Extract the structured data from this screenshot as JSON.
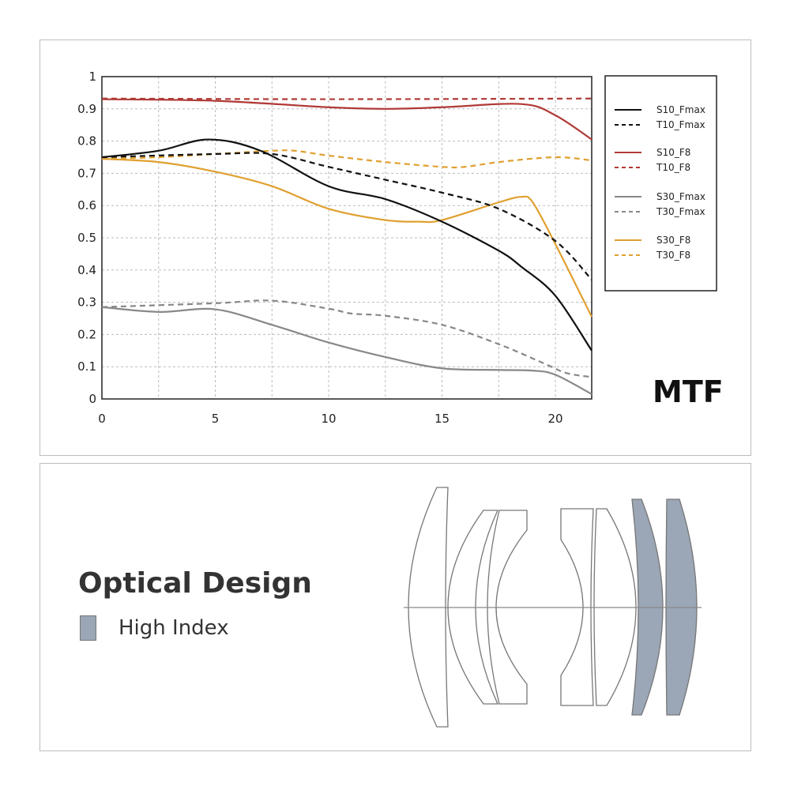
{
  "chart_data": {
    "type": "line",
    "title": "MTF",
    "xlabel": "",
    "ylabel": "",
    "xlim": [
      0,
      21.6
    ],
    "ylim": [
      0,
      1
    ],
    "x_ticks": [
      "0",
      "5",
      "10",
      "15",
      "20"
    ],
    "y_ticks": [
      "0",
      "0.1",
      "0.2",
      "0.3",
      "0.4",
      "0.5",
      "0.6",
      "0.7",
      "0.8",
      "0.9",
      "1"
    ],
    "grid": true,
    "legend_position": "right",
    "series": [
      {
        "name": "S10_Fmax",
        "color": "#111111",
        "dash": false,
        "points": [
          [
            0,
            0.75
          ],
          [
            2.5,
            0.77
          ],
          [
            4.7,
            0.805
          ],
          [
            7,
            0.77
          ],
          [
            10,
            0.66
          ],
          [
            12.5,
            0.62
          ],
          [
            15,
            0.55
          ],
          [
            17.5,
            0.46
          ],
          [
            18.5,
            0.41
          ],
          [
            20,
            0.32
          ],
          [
            21.6,
            0.15
          ]
        ]
      },
      {
        "name": "T10_Fmax",
        "color": "#111111",
        "dash": true,
        "points": [
          [
            0,
            0.75
          ],
          [
            5,
            0.76
          ],
          [
            7.5,
            0.76
          ],
          [
            10,
            0.72
          ],
          [
            12.5,
            0.68
          ],
          [
            15,
            0.64
          ],
          [
            17.5,
            0.59
          ],
          [
            20,
            0.49
          ],
          [
            21.6,
            0.37
          ]
        ]
      },
      {
        "name": "S10_F8",
        "color": "#b03a37",
        "dash": false,
        "points": [
          [
            0,
            0.93
          ],
          [
            5,
            0.925
          ],
          [
            10,
            0.905
          ],
          [
            12.5,
            0.9
          ],
          [
            15,
            0.905
          ],
          [
            18.5,
            0.915
          ],
          [
            20,
            0.88
          ],
          [
            21.6,
            0.805
          ]
        ]
      },
      {
        "name": "T10_F8",
        "color": "#b03a37",
        "dash": true,
        "points": [
          [
            0,
            0.932
          ],
          [
            10,
            0.93
          ],
          [
            21.6,
            0.932
          ]
        ]
      },
      {
        "name": "S30_Fmax",
        "color": "#888888",
        "dash": false,
        "points": [
          [
            0,
            0.285
          ],
          [
            2.5,
            0.27
          ],
          [
            5,
            0.278
          ],
          [
            7.5,
            0.23
          ],
          [
            10,
            0.175
          ],
          [
            12.5,
            0.13
          ],
          [
            15,
            0.095
          ],
          [
            17.5,
            0.09
          ],
          [
            19,
            0.088
          ],
          [
            20,
            0.075
          ],
          [
            21.6,
            0.015
          ]
        ]
      },
      {
        "name": "T30_Fmax",
        "color": "#888888",
        "dash": true,
        "points": [
          [
            0,
            0.285
          ],
          [
            5,
            0.297
          ],
          [
            7.5,
            0.305
          ],
          [
            10,
            0.28
          ],
          [
            11,
            0.265
          ],
          [
            12.5,
            0.258
          ],
          [
            15,
            0.23
          ],
          [
            17.5,
            0.17
          ],
          [
            19.5,
            0.11
          ],
          [
            20.5,
            0.08
          ],
          [
            21.6,
            0.068
          ]
        ]
      },
      {
        "name": "S30_F8",
        "color": "#e0a030",
        "dash": false,
        "points": [
          [
            0,
            0.745
          ],
          [
            2.5,
            0.735
          ],
          [
            5,
            0.705
          ],
          [
            7.5,
            0.66
          ],
          [
            10,
            0.59
          ],
          [
            12.5,
            0.555
          ],
          [
            14,
            0.55
          ],
          [
            15,
            0.555
          ],
          [
            17.5,
            0.61
          ],
          [
            18.5,
            0.627
          ],
          [
            19,
            0.61
          ],
          [
            20,
            0.48
          ],
          [
            21.6,
            0.255
          ]
        ]
      },
      {
        "name": "T30_F8",
        "color": "#e0a030",
        "dash": true,
        "points": [
          [
            0,
            0.745
          ],
          [
            2.5,
            0.75
          ],
          [
            5,
            0.76
          ],
          [
            7.5,
            0.77
          ],
          [
            8.5,
            0.77
          ],
          [
            10,
            0.755
          ],
          [
            12.5,
            0.735
          ],
          [
            15,
            0.72
          ],
          [
            16,
            0.72
          ],
          [
            17.5,
            0.735
          ],
          [
            20,
            0.75
          ],
          [
            21.6,
            0.74
          ]
        ]
      }
    ]
  },
  "optical_design": {
    "title": "Optical Design",
    "legend_label": "High Index",
    "high_index_color": "#9ba6b6"
  }
}
